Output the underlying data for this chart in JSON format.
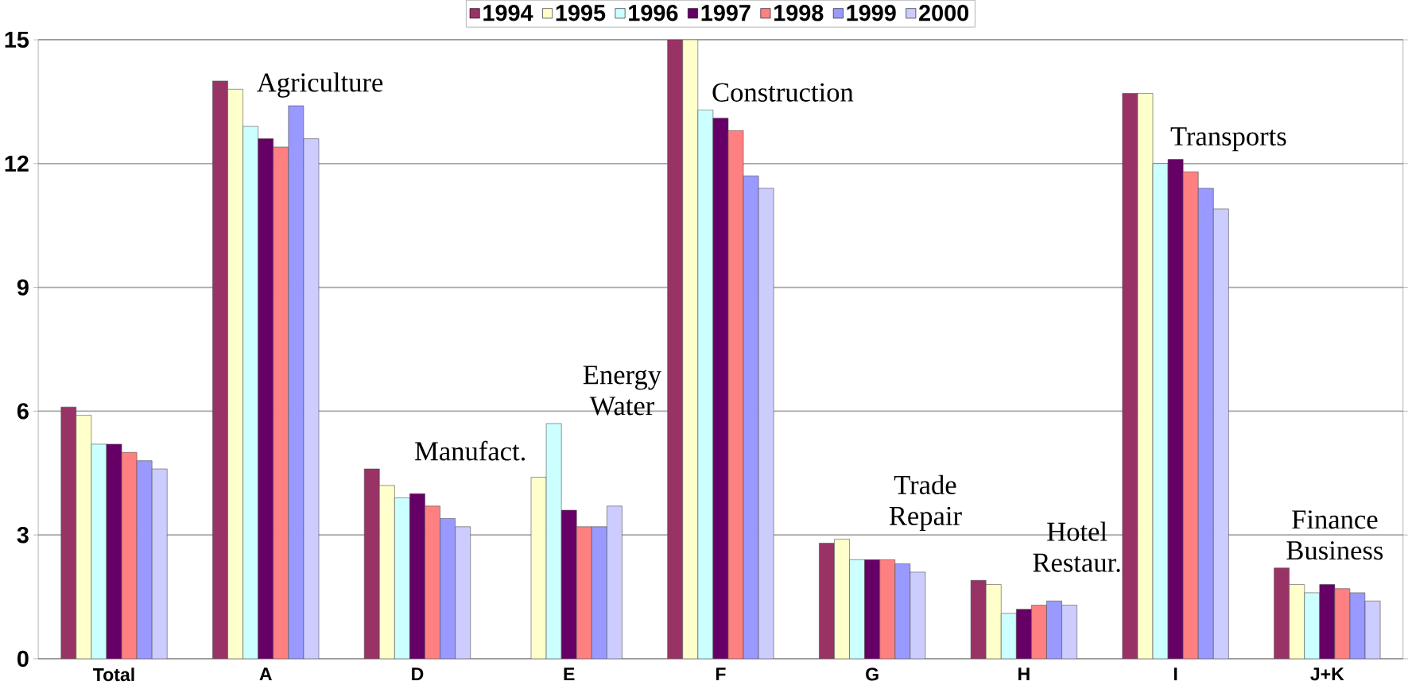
{
  "chart_data": {
    "type": "bar",
    "categories": [
      "Total",
      "A",
      "D",
      "E",
      "F",
      "G",
      "H",
      "I",
      "J+K"
    ],
    "series": [
      {
        "name": "1994",
        "color": "#993366",
        "values": [
          6.1,
          14.0,
          4.6,
          null,
          15,
          2.8,
          1.9,
          13.7,
          2.2
        ]
      },
      {
        "name": "1995",
        "color": "#ffffcc",
        "values": [
          5.9,
          13.8,
          4.2,
          4.4,
          15,
          2.9,
          1.8,
          13.7,
          1.8
        ]
      },
      {
        "name": "1996",
        "color": "#ccffff",
        "values": [
          5.2,
          12.9,
          3.9,
          5.7,
          13.3,
          2.4,
          1.1,
          12.0,
          1.6
        ]
      },
      {
        "name": "1997",
        "color": "#660066",
        "values": [
          5.2,
          12.6,
          4.0,
          3.6,
          13.1,
          2.4,
          1.2,
          12.1,
          1.8
        ]
      },
      {
        "name": "1998",
        "color": "#ff8080",
        "values": [
          5.0,
          12.4,
          3.7,
          3.2,
          12.8,
          2.4,
          1.3,
          11.8,
          1.7
        ]
      },
      {
        "name": "1999",
        "color": "#9999ff",
        "values": [
          4.8,
          13.4,
          3.4,
          3.2,
          11.7,
          2.3,
          1.4,
          11.4,
          1.6
        ]
      },
      {
        "name": "2000",
        "color": "#ccccff",
        "values": [
          4.6,
          12.6,
          3.2,
          3.7,
          11.4,
          2.1,
          1.3,
          10.9,
          1.4
        ]
      }
    ],
    "ylim": [
      0,
      15
    ],
    "yticks": [
      0,
      3,
      6,
      9,
      12,
      15
    ],
    "grid": "y",
    "legend": "top",
    "annotations": [
      "Agriculture",
      "Manufact.",
      "Energy Water",
      "Construction",
      "Trade Repair",
      "Hotel Restaur.",
      "Transports",
      "Finance Business"
    ]
  }
}
